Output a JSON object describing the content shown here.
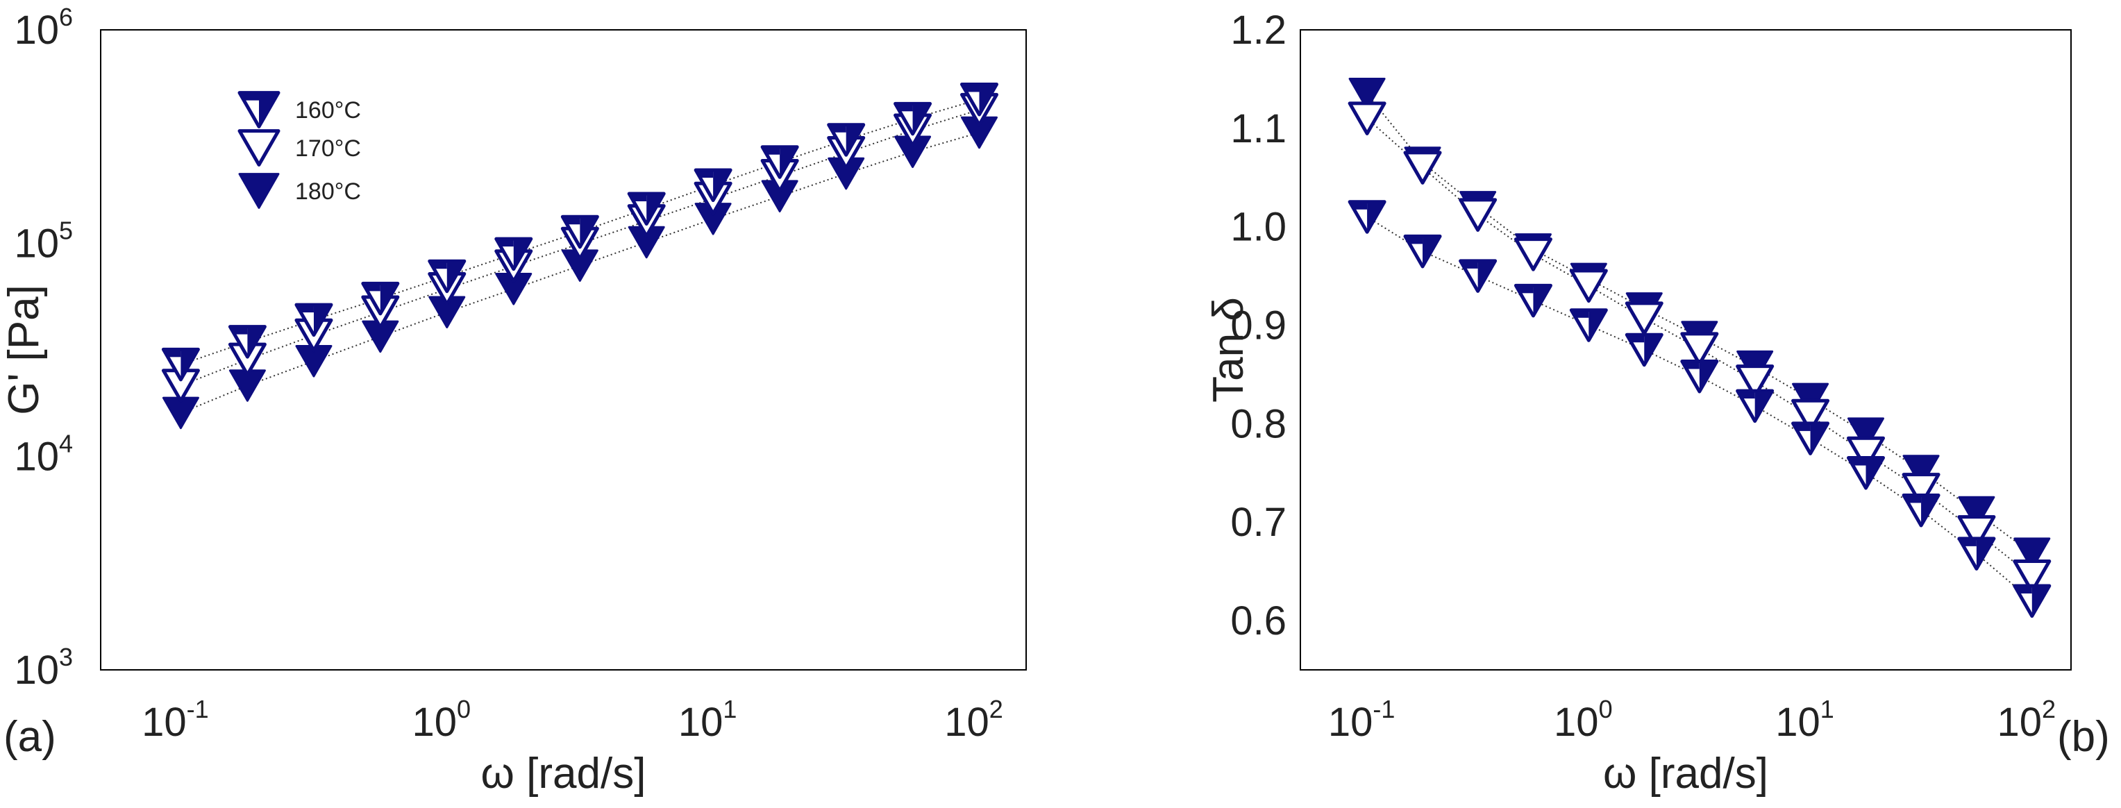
{
  "colors": {
    "marker": "#0d0d80",
    "line": "#333333",
    "axis": "#000000"
  },
  "chart_data": [
    {
      "type": "scatter",
      "panel_label": "(a)",
      "x_scale": "log",
      "y_scale": "log",
      "xlabel": "ω [rad/s]",
      "ylabel": "G' [Pa]",
      "xlim": [
        0.05,
        150
      ],
      "ylim": [
        1000,
        1000000
      ],
      "xticks": [
        {
          "value": 0.1,
          "base": "10",
          "exp": "-1"
        },
        {
          "value": 1,
          "base": "10",
          "exp": "0"
        },
        {
          "value": 10,
          "base": "10",
          "exp": "1"
        },
        {
          "value": 100,
          "base": "10",
          "exp": "2"
        }
      ],
      "yticks": [
        {
          "value": 1000,
          "base": "10",
          "exp": "3"
        },
        {
          "value": 10000,
          "base": "10",
          "exp": "4"
        },
        {
          "value": 100000,
          "base": "10",
          "exp": "5"
        },
        {
          "value": 1000000,
          "base": "10",
          "exp": "6"
        }
      ],
      "legend_position": "top-left",
      "x": [
        0.1,
        0.178,
        0.316,
        0.562,
        1.0,
        1.78,
        3.16,
        5.62,
        10.0,
        17.8,
        31.6,
        56.2,
        100.0
      ],
      "series": [
        {
          "name": "160°C",
          "marker": "half",
          "values": [
            27000,
            34500,
            43700,
            55000,
            70000,
            89000,
            113000,
            145000,
            187000,
            240000,
            305000,
            383000,
            472000
          ]
        },
        {
          "name": "170°C",
          "marker": "open",
          "values": [
            21500,
            28500,
            37000,
            47500,
            61000,
            78000,
            99500,
            127000,
            162000,
            207000,
            265000,
            338000,
            422000
          ]
        },
        {
          "name": "180°C",
          "marker": "filled",
          "values": [
            16000,
            21500,
            28000,
            36500,
            47500,
            61000,
            78500,
            101000,
            130000,
            166000,
            212000,
            268000,
            330000
          ]
        }
      ]
    },
    {
      "type": "scatter",
      "panel_label": "(b)",
      "x_scale": "log",
      "y_scale": "linear",
      "xlabel": "ω [rad/s]",
      "ylabel": "Tan δ",
      "xlim": [
        0.05,
        150
      ],
      "ylim": [
        0.55,
        1.2
      ],
      "xticks": [
        {
          "value": 0.1,
          "base": "10",
          "exp": "-1"
        },
        {
          "value": 1,
          "base": "10",
          "exp": "0"
        },
        {
          "value": 10,
          "base": "10",
          "exp": "1"
        },
        {
          "value": 100,
          "base": "10",
          "exp": "2"
        }
      ],
      "yticks": [
        {
          "value": 0.6,
          "label": "0.6"
        },
        {
          "value": 0.7,
          "label": "0.7"
        },
        {
          "value": 0.8,
          "label": "0.8"
        },
        {
          "value": 0.9,
          "label": "0.9"
        },
        {
          "value": 1.0,
          "label": "1.0"
        },
        {
          "value": 1.1,
          "label": "1.1"
        },
        {
          "value": 1.2,
          "label": "1.2"
        }
      ],
      "x": [
        0.1,
        0.178,
        0.316,
        0.562,
        1.0,
        1.78,
        3.16,
        5.62,
        10.0,
        17.8,
        31.6,
        56.2,
        100.0
      ],
      "series": [
        {
          "name": "160°C",
          "marker": "half",
          "values": [
            1.01,
            0.975,
            0.95,
            0.925,
            0.9,
            0.875,
            0.848,
            0.818,
            0.785,
            0.75,
            0.712,
            0.668,
            0.62
          ]
        },
        {
          "name": "170°C",
          "marker": "open",
          "values": [
            1.11,
            1.06,
            1.012,
            0.972,
            0.94,
            0.907,
            0.876,
            0.843,
            0.808,
            0.77,
            0.733,
            0.69,
            0.645
          ]
        },
        {
          "name": "180°C",
          "marker": "filled",
          "values": [
            1.135,
            1.065,
            1.02,
            0.977,
            0.947,
            0.917,
            0.888,
            0.858,
            0.825,
            0.79,
            0.752,
            0.71,
            0.668
          ]
        }
      ]
    }
  ]
}
